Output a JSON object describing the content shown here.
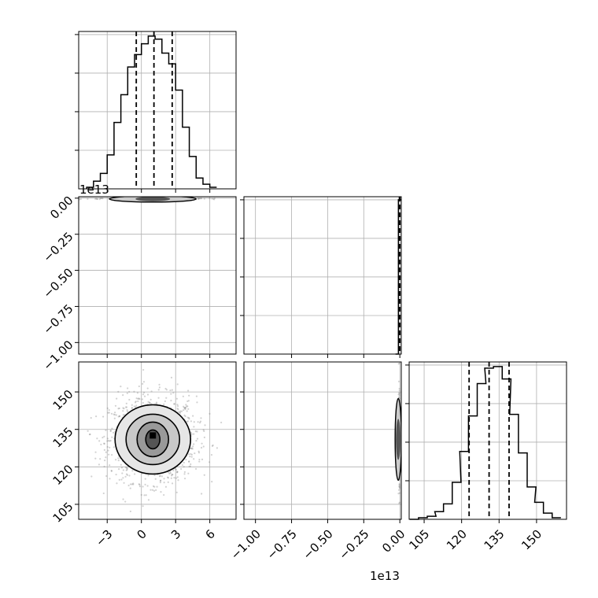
{
  "chart_data": [
    {
      "type": "corner",
      "axes_offsets": {
        "param2": "1e13"
      },
      "panels": [
        {
          "id": "hist_param1",
          "type": "histogram",
          "xlim": [
            -5.5,
            8.3
          ],
          "ylim": [
            0,
            1.02
          ],
          "quantile_lines": [
            -0.45,
            1.1,
            2.7
          ],
          "bins": [
            {
              "x": -4.5,
              "y": 0.01
            },
            {
              "x": -3.9,
              "y": 0.05
            },
            {
              "x": -3.3,
              "y": 0.1
            },
            {
              "x": -2.7,
              "y": 0.22
            },
            {
              "x": -2.1,
              "y": 0.43
            },
            {
              "x": -1.5,
              "y": 0.61
            },
            {
              "x": -0.9,
              "y": 0.79
            },
            {
              "x": -0.3,
              "y": 0.87
            },
            {
              "x": 0.3,
              "y": 0.94
            },
            {
              "x": 0.9,
              "y": 0.99
            },
            {
              "x": 1.5,
              "y": 0.97
            },
            {
              "x": 2.1,
              "y": 0.88
            },
            {
              "x": 2.7,
              "y": 0.81
            },
            {
              "x": 3.3,
              "y": 0.64
            },
            {
              "x": 3.9,
              "y": 0.4
            },
            {
              "x": 4.5,
              "y": 0.21
            },
            {
              "x": 5.1,
              "y": 0.07
            },
            {
              "x": 5.7,
              "y": 0.03
            },
            {
              "x": 6.3,
              "y": 0.01
            }
          ]
        },
        {
          "id": "hist_param2",
          "type": "histogram",
          "xlim": [
            -1.08,
            0.01
          ],
          "ylim": [
            0,
            1.02
          ],
          "quantile_lines": [
            -0.003,
            0.0,
            0.0
          ],
          "bins": [
            {
              "x": -0.02,
              "y": 0.0
            },
            {
              "x": 0.0,
              "y": 1.0
            }
          ]
        },
        {
          "id": "hist_param3",
          "type": "histogram",
          "xlim": [
            99,
            162
          ],
          "ylim": [
            0,
            1.02
          ],
          "quantile_lines": [
            123,
            131,
            139
          ],
          "bins": [
            {
              "x": 101,
              "y": 0.0
            },
            {
              "x": 104.5,
              "y": 0.01
            },
            {
              "x": 108,
              "y": 0.02
            },
            {
              "x": 111,
              "y": 0.05
            },
            {
              "x": 114.5,
              "y": 0.1
            },
            {
              "x": 118,
              "y": 0.24
            },
            {
              "x": 121,
              "y": 0.44
            },
            {
              "x": 124.5,
              "y": 0.67
            },
            {
              "x": 128,
              "y": 0.88
            },
            {
              "x": 131,
              "y": 0.98
            },
            {
              "x": 134.5,
              "y": 0.99
            },
            {
              "x": 138,
              "y": 0.91
            },
            {
              "x": 141,
              "y": 0.68
            },
            {
              "x": 144.5,
              "y": 0.43
            },
            {
              "x": 148,
              "y": 0.21
            },
            {
              "x": 151,
              "y": 0.11
            },
            {
              "x": 154.5,
              "y": 0.04
            },
            {
              "x": 158,
              "y": 0.01
            }
          ]
        },
        {
          "id": "scatter_p1_p2",
          "type": "scatter-density",
          "x_center": 1.0,
          "x_spread": 1.9,
          "y_center": 0.0,
          "xlim": [
            -5.5,
            8.3
          ],
          "ylim": [
            -1.08,
            0.01
          ]
        },
        {
          "id": "scatter_p1_p3",
          "type": "scatter-density",
          "x_center": 1.0,
          "x_spread": 1.9,
          "y_center": 131,
          "y_spread": 8.5,
          "xlim": [
            -5.5,
            8.3
          ],
          "ylim": [
            99,
            162
          ]
        },
        {
          "id": "scatter_p2_p3",
          "type": "scatter-density",
          "x_center": 0.0,
          "y_center": 131,
          "y_spread": 8.5,
          "xlim": [
            -1.08,
            0.01
          ],
          "ylim": [
            99,
            162
          ]
        }
      ],
      "tick_labels": {
        "param1_x": [
          "−3",
          "0",
          "3",
          "6"
        ],
        "param1_x_values": [
          -3,
          0,
          3,
          6
        ],
        "param2_x": [
          "−1.00",
          "−0.75",
          "−0.50",
          "−0.25",
          "0.00"
        ],
        "param2_x_values": [
          -1.0,
          -0.75,
          -0.5,
          -0.25,
          0.0
        ],
        "param3_x": [
          "105",
          "120",
          "135",
          "150"
        ],
        "param3_x_values": [
          105,
          120,
          135,
          150
        ],
        "param2_y": [
          "0.00",
          "−0.25",
          "−0.50",
          "−0.75",
          "−1.00"
        ],
        "param2_y_values": [
          0.0,
          -0.25,
          -0.5,
          -0.75,
          -1.0
        ],
        "param3_y": [
          "150",
          "135",
          "120",
          "105"
        ],
        "param3_y_values": [
          150,
          135,
          120,
          105
        ]
      },
      "colors": {
        "axes": "#000000",
        "grid": "#b0b0b0",
        "points": "#7f7f7f"
      },
      "grid": true
    }
  ]
}
